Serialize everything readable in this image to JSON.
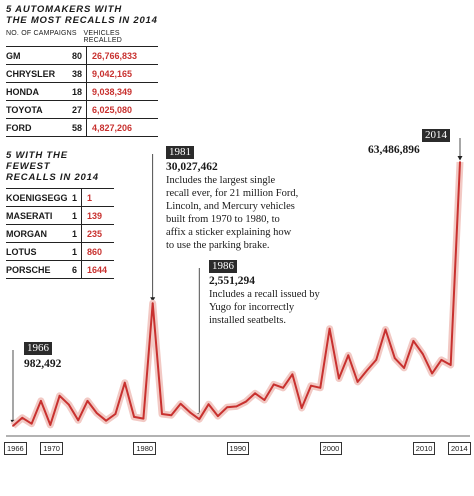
{
  "top_table": {
    "title_line1": "5 AUTOMAKERS WITH",
    "title_line2": "THE MOST RECALLS IN 2014",
    "col1": "NO. OF CAMPAIGNS",
    "col2": "VEHICLES RECALLED",
    "rows": [
      {
        "name": "GM",
        "campaigns": "80",
        "vehicles": "26,766,833"
      },
      {
        "name": "CHRYSLER",
        "campaigns": "38",
        "vehicles": "9,042,165"
      },
      {
        "name": "HONDA",
        "campaigns": "18",
        "vehicles": "9,038,349"
      },
      {
        "name": "TOYOTA",
        "campaigns": "27",
        "vehicles": "6,025,080"
      },
      {
        "name": "FORD",
        "campaigns": "58",
        "vehicles": "4,827,206"
      }
    ]
  },
  "bottom_table": {
    "title_line1": "5 WITH THE FEWEST",
    "title_line2": "RECALLS IN 2014",
    "rows": [
      {
        "name": "KOENIGSEGG",
        "campaigns": "1",
        "vehicles": "1"
      },
      {
        "name": "MASERATI",
        "campaigns": "1",
        "vehicles": "139"
      },
      {
        "name": "MORGAN",
        "campaigns": "1",
        "vehicles": "235"
      },
      {
        "name": "LOTUS",
        "campaigns": "1",
        "vehicles": "860"
      },
      {
        "name": "PORSCHE",
        "campaigns": "6",
        "vehicles": "1644"
      }
    ]
  },
  "annotations": {
    "a1966": {
      "year": "1966",
      "value": "982,492"
    },
    "a1981": {
      "year": "1981",
      "value": "30,027,462",
      "note": [
        "Includes the largest single",
        "recall ever, for 21 million Ford,",
        "Lincoln, and Mercury vehicles",
        "built from 1970 to 1980, to",
        "affix a sticker explaining how",
        "to use the parking brake."
      ]
    },
    "a1986": {
      "year": "1986",
      "value": "2,551,294",
      "note": [
        "Includes a recall issued by",
        "Yugo for incorrectly",
        "installed seatbelts."
      ]
    },
    "a2014": {
      "year": "2014",
      "value": "63,486,896"
    }
  },
  "colors": {
    "line": "#c8312f",
    "shadow": "#f2c9c4",
    "ink": "#1a1a1a"
  },
  "chart_data": {
    "type": "line",
    "title": "",
    "xlabel": "",
    "ylabel": "Vehicles recalled",
    "x_tick_labels": [
      "1966",
      "1970",
      "1980",
      "1990",
      "2000",
      "2010",
      "2014"
    ],
    "x": [
      1966,
      1967,
      1968,
      1969,
      1970,
      1971,
      1972,
      1973,
      1974,
      1975,
      1976,
      1977,
      1978,
      1979,
      1980,
      1981,
      1982,
      1983,
      1984,
      1985,
      1986,
      1987,
      1988,
      1989,
      1990,
      1991,
      1992,
      1993,
      1994,
      1995,
      1996,
      1997,
      1998,
      1999,
      2000,
      2001,
      2002,
      2003,
      2004,
      2005,
      2006,
      2007,
      2008,
      2009,
      2010,
      2011,
      2012,
      2013,
      2014
    ],
    "series": [
      {
        "values": [
          982492,
          2900000,
          1500000,
          6900000,
          1200000,
          8100000,
          6000000,
          2300000,
          6900000,
          4000000,
          2200000,
          3800000,
          11200000,
          3100000,
          2700000,
          30027462,
          3800000,
          3500000,
          6200000,
          4200000,
          2551294,
          6100000,
          3300000,
          5400000,
          5600000,
          6700000,
          8700000,
          7100000,
          10800000,
          10000000,
          13200000,
          5200000,
          10500000,
          10000000,
          24000000,
          12200000,
          17700000,
          11400000,
          14100000,
          16600000,
          23800000,
          17000000,
          14700000,
          21100000,
          18000000,
          13400000,
          16600000,
          15400000,
          63486896
        ]
      }
    ],
    "ylim": [
      0,
      65000000
    ],
    "grid": false,
    "legend": "none"
  }
}
